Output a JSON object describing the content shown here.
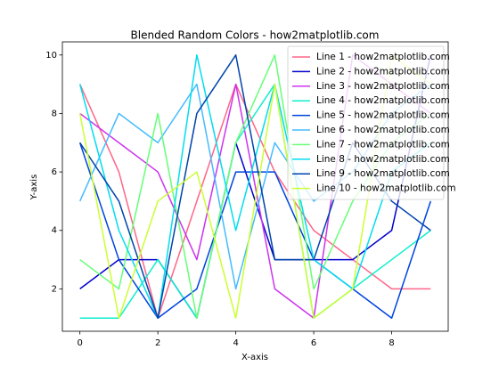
{
  "chart_data": {
    "type": "line",
    "title": "Blended Random Colors - how2matplotlib.com",
    "x_label": "X-axis",
    "y_label": "Y-axis",
    "x": [
      0,
      1,
      2,
      3,
      4,
      5,
      6,
      7,
      8,
      9
    ],
    "xlim": [
      -0.45,
      9.45
    ],
    "xticks": [
      0,
      2,
      4,
      6,
      8
    ],
    "ylim": [
      0.55,
      10.45
    ],
    "yticks": [
      2,
      4,
      6,
      8,
      10
    ],
    "legend": "upper right",
    "series": [
      {
        "name": "Line 1 - how2matplotlib.com",
        "color": "#ff6688",
        "values": [
          9,
          6,
          1,
          5,
          9,
          6,
          4,
          3,
          2,
          2
        ]
      },
      {
        "name": "Line 2 - how2matplotlib.com",
        "color": "#0000cc",
        "values": [
          2,
          3,
          3,
          1,
          7,
          3,
          3,
          3,
          4,
          10
        ]
      },
      {
        "name": "Line 3 - how2matplotlib.com",
        "color": "#cc33ee",
        "values": [
          8,
          7,
          6,
          3,
          9,
          2,
          1,
          10,
          9,
          8
        ]
      },
      {
        "name": "Line 4 - how2matplotlib.com",
        "color": "#11eecc",
        "values": [
          1,
          1,
          3,
          1,
          7,
          9,
          1,
          2,
          3,
          4
        ]
      },
      {
        "name": "Line 5 - how2matplotlib.com",
        "color": "#0044dd",
        "values": [
          7,
          3,
          1,
          2,
          6,
          6,
          3,
          2,
          1,
          5
        ]
      },
      {
        "name": "Line 6 - how2matplotlib.com",
        "color": "#44bbff",
        "values": [
          5,
          8,
          7,
          9,
          2,
          7,
          5,
          6,
          8,
          9
        ]
      },
      {
        "name": "Line 7 - how2matplotlib.com",
        "color": "#66ff77",
        "values": [
          3,
          2,
          8,
          1,
          7,
          10,
          2,
          5,
          7,
          8
        ]
      },
      {
        "name": "Line 8 - how2matplotlib.com",
        "color": "#00ddee",
        "values": [
          9,
          4,
          1,
          10,
          4,
          9,
          3,
          2,
          6,
          7
        ]
      },
      {
        "name": "Line 9 - how2matplotlib.com",
        "color": "#0044aa",
        "values": [
          7,
          5,
          1,
          8,
          10,
          3,
          3,
          7,
          5,
          4
        ]
      },
      {
        "name": "Line 10 - how2matplotlib.com",
        "color": "#ccff33",
        "values": [
          8,
          1,
          5,
          6,
          1,
          9,
          1,
          2,
          10,
          9
        ]
      }
    ]
  }
}
